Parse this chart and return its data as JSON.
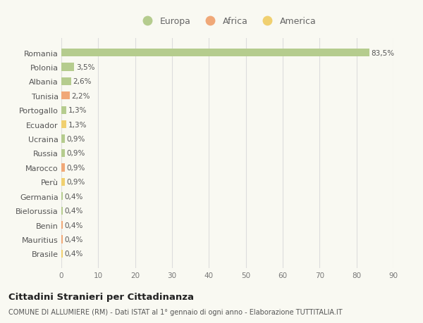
{
  "countries": [
    "Romania",
    "Polonia",
    "Albania",
    "Tunisia",
    "Portogallo",
    "Ecuador",
    "Ucraina",
    "Russia",
    "Marocco",
    "Perù",
    "Germania",
    "Bielorussia",
    "Benin",
    "Mauritius",
    "Brasile"
  ],
  "values": [
    83.5,
    3.5,
    2.6,
    2.2,
    1.3,
    1.3,
    0.9,
    0.9,
    0.9,
    0.9,
    0.4,
    0.4,
    0.4,
    0.4,
    0.4
  ],
  "labels": [
    "83,5%",
    "3,5%",
    "2,6%",
    "2,2%",
    "1,3%",
    "1,3%",
    "0,9%",
    "0,9%",
    "0,9%",
    "0,9%",
    "0,4%",
    "0,4%",
    "0,4%",
    "0,4%",
    "0,4%"
  ],
  "categories": [
    "Europa",
    "Europa",
    "Europa",
    "Africa",
    "Europa",
    "America",
    "Europa",
    "Europa",
    "Africa",
    "America",
    "Europa",
    "Europa",
    "Africa",
    "Africa",
    "America"
  ],
  "colors": {
    "Europa": "#b5cc8e",
    "Africa": "#f0a878",
    "America": "#f0d070"
  },
  "legend": [
    "Europa",
    "Africa",
    "America"
  ],
  "legend_colors": [
    "#b5cc8e",
    "#f0a878",
    "#f0d070"
  ],
  "title": "Cittadini Stranieri per Cittadinanza",
  "subtitle": "COMUNE DI ALLUMIERE (RM) - Dati ISTAT al 1° gennaio di ogni anno - Elaborazione TUTTITALIA.IT",
  "xlim": [
    0,
    90
  ],
  "xticks": [
    0,
    10,
    20,
    30,
    40,
    50,
    60,
    70,
    80,
    90
  ],
  "bg_color": "#f9f9f2",
  "grid_color": "#dddddd",
  "bar_height": 0.55
}
